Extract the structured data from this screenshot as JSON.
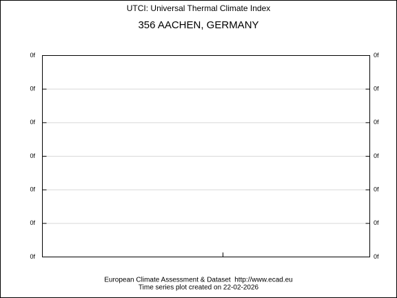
{
  "header": {
    "subtitle": "UTCI: Universal Thermal Climate Index",
    "title": "356 AACHEN, GERMANY"
  },
  "axis": {
    "left_labels": [
      "0f",
      "0f",
      "0f",
      "0f",
      "0f",
      "0f",
      "0f"
    ],
    "right_labels": [
      "0f",
      "0f",
      "0f",
      "0f",
      "0f",
      "0f",
      "0f"
    ]
  },
  "footer": {
    "source": "European Climate Assessment & Dataset  http://www.ecad.eu",
    "created": "Time series plot created on 22-02-2026"
  }
}
